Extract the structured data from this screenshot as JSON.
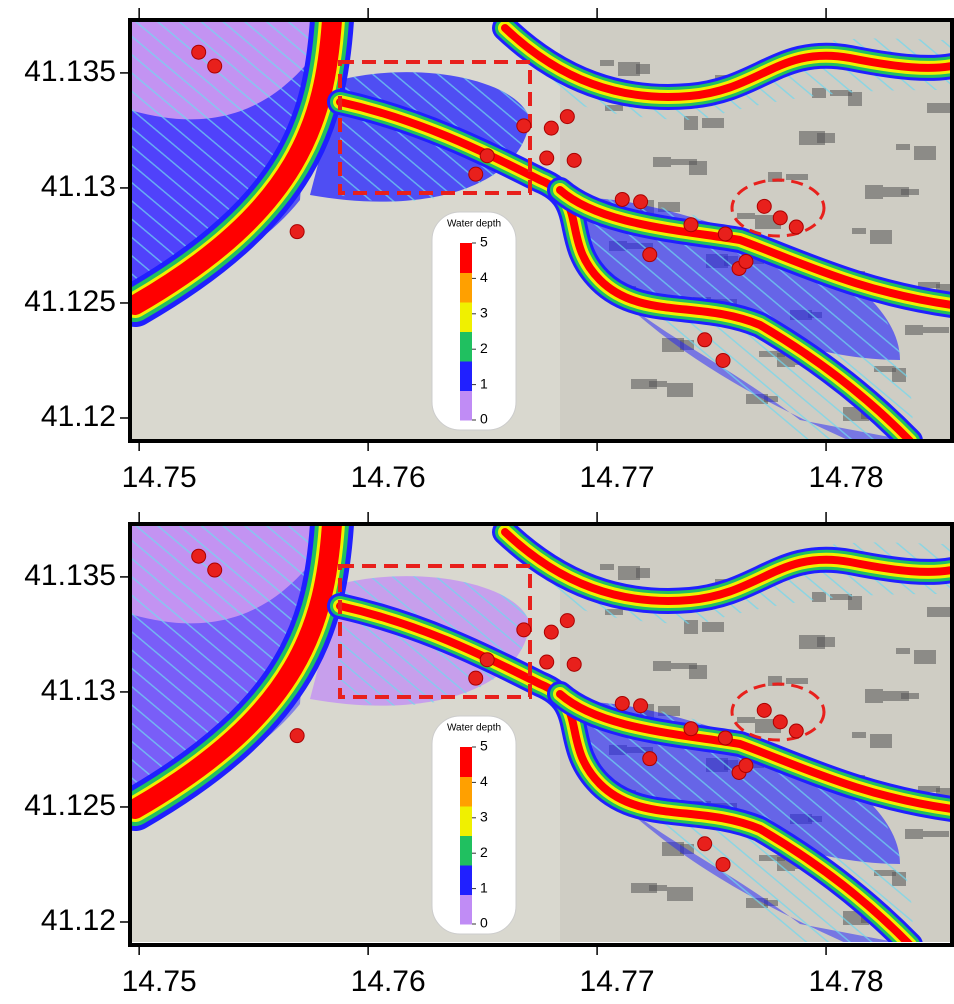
{
  "chart_data": [
    {
      "type": "map",
      "xlim": [
        14.7496,
        14.7855
      ],
      "ylim": [
        41.119,
        41.1373
      ],
      "xticks": [
        14.75,
        14.76,
        14.77,
        14.78
      ],
      "yticks": [
        41.12,
        41.125,
        41.13,
        41.135
      ],
      "legend": {
        "title": "Water depth",
        "ticks": [
          0,
          1,
          2,
          3,
          4,
          5
        ],
        "colors": [
          "#c08cf5",
          "#2020ff",
          "#20c060",
          "#f0f000",
          "#ffa000",
          "#ff0000"
        ]
      },
      "points": {
        "color": "#e8201c",
        "x": [
          14.7526,
          14.7533,
          14.7569,
          14.7647,
          14.7652,
          14.7668,
          14.7678,
          14.768,
          14.7687,
          14.769,
          14.7711,
          14.7719,
          14.7741,
          14.7756,
          14.7773,
          14.778,
          14.7787,
          14.7747,
          14.7755,
          14.7762,
          14.7765,
          14.7723
        ],
        "y": [
          41.1359,
          41.1353,
          41.1281,
          41.1306,
          41.1314,
          41.1327,
          41.1313,
          41.1326,
          41.1331,
          41.1312,
          41.1295,
          41.1294,
          41.1284,
          41.128,
          41.1292,
          41.1287,
          41.1283,
          41.1234,
          41.1225,
          41.1265,
          41.1268,
          41.1271
        ]
      }
    },
    {
      "type": "map",
      "xlim": [
        14.7496,
        14.7855
      ],
      "ylim": [
        41.119,
        41.1373
      ],
      "xticks": [
        14.75,
        14.76,
        14.77,
        14.78
      ],
      "yticks": [
        41.12,
        41.125,
        41.13,
        41.135
      ],
      "legend": {
        "title": "Water depth",
        "ticks": [
          0,
          1,
          2,
          3,
          4,
          5
        ],
        "colors": [
          "#c08cf5",
          "#2020ff",
          "#20c060",
          "#f0f000",
          "#ffa000",
          "#ff0000"
        ]
      },
      "points": {
        "color": "#e8201c",
        "x": [
          14.7526,
          14.7533,
          14.7569,
          14.7647,
          14.7652,
          14.7668,
          14.7678,
          14.768,
          14.7687,
          14.769,
          14.7711,
          14.7719,
          14.7741,
          14.7756,
          14.7773,
          14.778,
          14.7787,
          14.7747,
          14.7755,
          14.7762,
          14.7765,
          14.7723
        ],
        "y": [
          41.1359,
          41.1353,
          41.1281,
          41.1306,
          41.1314,
          41.1327,
          41.1313,
          41.1326,
          41.1331,
          41.1312,
          41.1295,
          41.1294,
          41.1284,
          41.128,
          41.1292,
          41.1287,
          41.1283,
          41.1234,
          41.1225,
          41.1265,
          41.1268,
          41.1271
        ]
      }
    }
  ]
}
